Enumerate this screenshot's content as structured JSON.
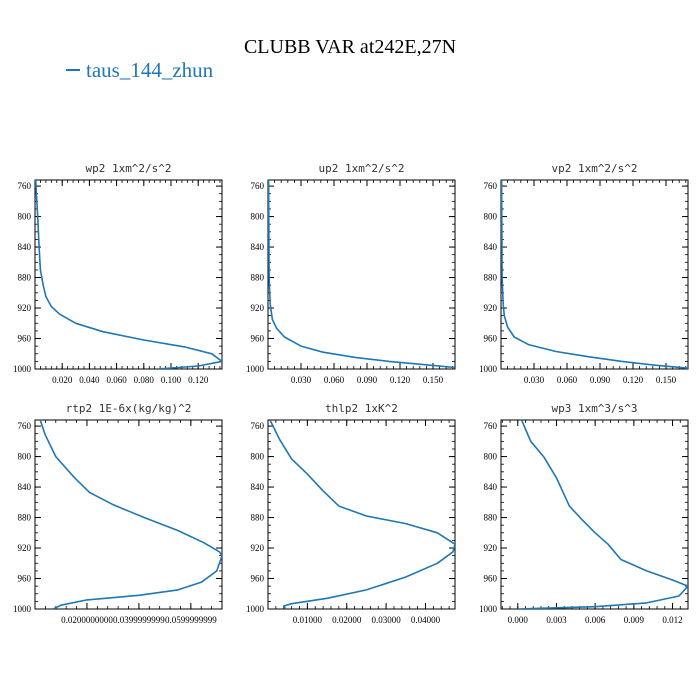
{
  "figure": {
    "title": "CLUBB VAR at242E,27N",
    "legend_label": "taus_144_zhun",
    "line_color": "#1f77b4"
  },
  "chart_data": [
    {
      "type": "line",
      "title": "wp2  1xm^2/s^2",
      "xlim": [
        0.0,
        0.1375
      ],
      "ylim": [
        1000,
        752
      ],
      "x_ticks": [
        0.02,
        0.04,
        0.06,
        0.08,
        0.1,
        0.12
      ],
      "x_tick_labels": [
        "0.020",
        "0.040",
        "0.060",
        "0.080",
        "0.100",
        "0.120"
      ],
      "y_ticks": [
        760,
        800,
        840,
        880,
        920,
        960,
        1000
      ],
      "series": [
        {
          "x": [
            0.0005,
            0.001,
            0.002,
            0.003,
            0.004,
            0.006,
            0.008,
            0.012,
            0.018,
            0.03,
            0.05,
            0.08,
            0.11,
            0.13,
            0.1375,
            0.12,
            0.09
          ],
          "y": [
            752,
            770,
            800,
            840,
            870,
            890,
            905,
            918,
            928,
            940,
            951,
            962,
            971,
            980,
            990,
            996,
            1000
          ]
        }
      ]
    },
    {
      "type": "line",
      "title": "up2  1xm^2/s^2",
      "xlim": [
        0.0,
        0.17
      ],
      "ylim": [
        1000,
        752
      ],
      "x_ticks": [
        0.03,
        0.06,
        0.09,
        0.12,
        0.15
      ],
      "x_tick_labels": [
        "0.030",
        "0.060",
        "0.090",
        "0.120",
        "0.150"
      ],
      "y_ticks": [
        760,
        800,
        840,
        880,
        920,
        960,
        1000
      ],
      "series": [
        {
          "x": [
            0.0005,
            0.001,
            0.002,
            0.004,
            0.008,
            0.015,
            0.03,
            0.05,
            0.08,
            0.11,
            0.14,
            0.17
          ],
          "y": [
            752,
            880,
            915,
            935,
            947,
            958,
            970,
            978,
            985,
            990,
            994,
            998
          ]
        }
      ]
    },
    {
      "type": "line",
      "title": "vp2  1xm^2/s^2",
      "xlim": [
        0.0,
        0.17
      ],
      "ylim": [
        1000,
        752
      ],
      "x_ticks": [
        0.03,
        0.06,
        0.09,
        0.12,
        0.15
      ],
      "x_tick_labels": [
        "0.030",
        "0.060",
        "0.090",
        "0.120",
        "0.150"
      ],
      "y_ticks": [
        760,
        800,
        840,
        880,
        920,
        960,
        1000
      ],
      "series": [
        {
          "x": [
            0.0005,
            0.001,
            0.002,
            0.003,
            0.006,
            0.012,
            0.025,
            0.05,
            0.08,
            0.11,
            0.14,
            0.17
          ],
          "y": [
            752,
            880,
            915,
            930,
            945,
            958,
            968,
            977,
            984,
            990,
            995,
            999
          ]
        }
      ]
    },
    {
      "type": "line",
      "title": "rtp2  1E-6x(kg/kg)^2",
      "xlim": [
        0.0,
        0.072
      ],
      "ylim": [
        1000,
        752
      ],
      "x_ticks": [
        0.02,
        0.04,
        0.06
      ],
      "x_tick_labels": [
        "0.0200000000",
        "0.0399999999",
        "0.0599999999"
      ],
      "y_ticks": [
        760,
        800,
        840,
        880,
        920,
        960,
        1000
      ],
      "series": [
        {
          "x": [
            0.002,
            0.004,
            0.008,
            0.015,
            0.021,
            0.03,
            0.042,
            0.055,
            0.065,
            0.071,
            0.072,
            0.07,
            0.064,
            0.055,
            0.04,
            0.02,
            0.01,
            0.007
          ],
          "y": [
            752,
            772,
            800,
            827,
            847,
            863,
            880,
            897,
            913,
            925,
            930,
            950,
            965,
            975,
            982,
            988,
            995,
            1000
          ]
        }
      ]
    },
    {
      "type": "line",
      "title": "thlp2  1xK^2",
      "xlim": [
        0.0,
        0.0475
      ],
      "ylim": [
        1000,
        752
      ],
      "x_ticks": [
        0.01,
        0.02,
        0.03,
        0.04
      ],
      "x_tick_labels": [
        "0.01000",
        "0.02000",
        "0.03000",
        "0.04000"
      ],
      "y_ticks": [
        760,
        800,
        840,
        880,
        920,
        960,
        1000
      ],
      "series": [
        {
          "x": [
            0.0005,
            0.003,
            0.006,
            0.01,
            0.014,
            0.018,
            0.025,
            0.035,
            0.043,
            0.0475,
            0.047,
            0.043,
            0.035,
            0.025,
            0.015,
            0.006,
            0.004,
            0.0045
          ],
          "y": [
            752,
            778,
            803,
            823,
            845,
            865,
            878,
            888,
            900,
            915,
            925,
            940,
            958,
            975,
            986,
            993,
            996,
            1000
          ]
        }
      ]
    },
    {
      "type": "line",
      "title": "wp3  1xm^3/s^3",
      "xlim": [
        -0.0013,
        0.0132
      ],
      "ylim": [
        1000,
        752
      ],
      "x_ticks": [
        0.0,
        0.003,
        0.006,
        0.009,
        0.012
      ],
      "x_tick_labels": [
        "0.000",
        "0.003",
        "0.006",
        "0.009",
        "0.012"
      ],
      "y_ticks": [
        760,
        800,
        840,
        880,
        920,
        960,
        1000
      ],
      "series": [
        {
          "x": [
            0.0003,
            0.001,
            0.002,
            0.003,
            0.004,
            0.005,
            0.006,
            0.007,
            0.008,
            0.01,
            0.012,
            0.0132,
            0.0125,
            0.01,
            0.006,
            0.002,
            0.0
          ],
          "y": [
            752,
            780,
            800,
            828,
            865,
            883,
            900,
            915,
            935,
            950,
            962,
            970,
            983,
            992,
            997,
            999,
            1000
          ]
        }
      ]
    }
  ]
}
